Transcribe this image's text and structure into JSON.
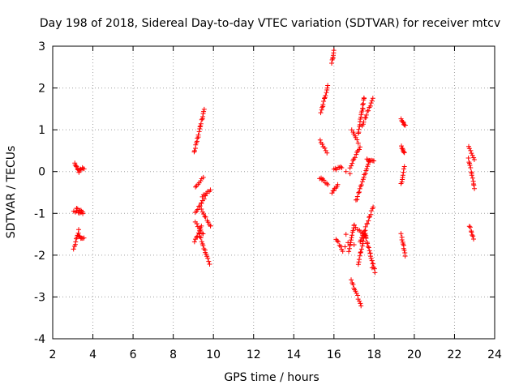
{
  "chart_data": {
    "type": "scatter",
    "title": "Day 198 of 2018, Sidereal Day-to-day VTEC variation (SDTVAR) for receiver mtcv",
    "xlabel": "GPS time / hours",
    "ylabel": "SDTVAR / TECUs",
    "xlim": [
      2,
      24
    ],
    "ylim": [
      -4,
      3
    ],
    "xticks": [
      2,
      4,
      6,
      8,
      10,
      12,
      14,
      16,
      18,
      20,
      22,
      24
    ],
    "yticks": [
      -4,
      -3,
      -2,
      -1,
      0,
      1,
      2,
      3
    ],
    "grid": true,
    "marker": "plus",
    "color": "#ff0000",
    "segments": [
      {
        "x": [
          3.1,
          3.3
        ],
        "y": [
          0.2,
          0.0
        ]
      },
      {
        "x": [
          3.3,
          3.55
        ],
        "y": [
          0.05,
          0.08
        ]
      },
      {
        "x": [
          3.05,
          3.5
        ],
        "y": [
          -0.95,
          -1.0
        ]
      },
      {
        "x": [
          3.2,
          3.5
        ],
        "y": [
          -0.9,
          -0.95
        ]
      },
      {
        "x": [
          3.05,
          3.3
        ],
        "y": [
          -1.85,
          -1.4
        ]
      },
      {
        "x": [
          3.25,
          3.55
        ],
        "y": [
          -1.55,
          -1.6
        ]
      },
      {
        "x": [
          9.05,
          9.55
        ],
        "y": [
          0.45,
          1.5
        ]
      },
      {
        "x": [
          9.1,
          9.5
        ],
        "y": [
          -0.35,
          -0.15
        ]
      },
      {
        "x": [
          9.1,
          9.6
        ],
        "y": [
          -1.0,
          -0.6
        ]
      },
      {
        "x": [
          9.45,
          9.85
        ],
        "y": [
          -0.6,
          -0.45
        ]
      },
      {
        "x": [
          9.05,
          9.4
        ],
        "y": [
          -1.7,
          -1.3
        ]
      },
      {
        "x": [
          9.3,
          9.8
        ],
        "y": [
          -1.5,
          -2.2
        ]
      },
      {
        "x": [
          9.1,
          9.5
        ],
        "y": [
          -1.2,
          -1.5
        ]
      },
      {
        "x": [
          9.4,
          9.85
        ],
        "y": [
          -0.9,
          -1.3
        ]
      },
      {
        "x": [
          15.35,
          15.7
        ],
        "y": [
          1.4,
          2.05
        ]
      },
      {
        "x": [
          15.3,
          15.65
        ],
        "y": [
          0.75,
          0.45
        ]
      },
      {
        "x": [
          15.3,
          15.7
        ],
        "y": [
          -0.15,
          -0.3
        ]
      },
      {
        "x": [
          15.9,
          16.0
        ],
        "y": [
          2.6,
          2.9
        ]
      },
      {
        "x": [
          15.9,
          16.2
        ],
        "y": [
          -0.5,
          -0.3
        ]
      },
      {
        "x": [
          16.0,
          16.4
        ],
        "y": [
          0.05,
          0.1
        ]
      },
      {
        "x": [
          16.1,
          16.45
        ],
        "y": [
          -1.6,
          -1.9
        ]
      },
      {
        "x": [
          16.75,
          17.0
        ],
        "y": [
          -1.9,
          -1.3
        ]
      },
      {
        "x": [
          16.8,
          17.3
        ],
        "y": [
          0.1,
          0.6
        ]
      },
      {
        "x": [
          16.9,
          17.2
        ],
        "y": [
          1.0,
          0.7
        ]
      },
      {
        "x": [
          17.2,
          17.5
        ],
        "y": [
          0.9,
          1.75
        ]
      },
      {
        "x": [
          17.4,
          17.95
        ],
        "y": [
          1.1,
          1.75
        ]
      },
      {
        "x": [
          16.85,
          17.35
        ],
        "y": [
          -2.6,
          -3.2
        ]
      },
      {
        "x": [
          17.1,
          17.75
        ],
        "y": [
          -0.7,
          0.25
        ]
      },
      {
        "x": [
          17.65,
          18.0
        ],
        "y": [
          0.3,
          0.25
        ]
      },
      {
        "x": [
          17.0,
          17.6
        ],
        "y": [
          -1.3,
          -1.55
        ]
      },
      {
        "x": [
          17.3,
          17.95
        ],
        "y": [
          -1.7,
          -0.85
        ]
      },
      {
        "x": [
          17.55,
          18.05
        ],
        "y": [
          -1.5,
          -2.4
        ]
      },
      {
        "x": [
          17.2,
          17.55
        ],
        "y": [
          -2.2,
          -1.5
        ]
      },
      {
        "x": [
          19.35,
          19.55
        ],
        "y": [
          1.25,
          1.1
        ]
      },
      {
        "x": [
          19.35,
          19.5
        ],
        "y": [
          0.6,
          0.45
        ]
      },
      {
        "x": [
          19.35,
          19.5
        ],
        "y": [
          -0.3,
          0.1
        ]
      },
      {
        "x": [
          19.35,
          19.55
        ],
        "y": [
          -1.5,
          -2.0
        ]
      },
      {
        "x": [
          22.7,
          23.0
        ],
        "y": [
          0.6,
          0.3
        ]
      },
      {
        "x": [
          22.7,
          23.0
        ],
        "y": [
          0.3,
          -0.4
        ]
      },
      {
        "x": [
          22.75,
          22.95
        ],
        "y": [
          -1.3,
          -1.6
        ]
      }
    ],
    "points": [
      {
        "x": 16.6,
        "y": -1.5
      },
      {
        "x": 16.7,
        "y": -1.7
      },
      {
        "x": 17.0,
        "y": -1.75
      },
      {
        "x": 17.8,
        "y": -1.95
      },
      {
        "x": 17.9,
        "y": -2.3
      },
      {
        "x": 17.5,
        "y": 1.75
      },
      {
        "x": 17.45,
        "y": 1.5
      },
      {
        "x": 16.55,
        "y": -1.8
      },
      {
        "x": 16.6,
        "y": 0.0
      },
      {
        "x": 16.8,
        "y": -0.05
      },
      {
        "x": 9.4,
        "y": -0.75
      },
      {
        "x": 9.85,
        "y": -1.3
      },
      {
        "x": 15.4,
        "y": -0.2
      }
    ]
  }
}
